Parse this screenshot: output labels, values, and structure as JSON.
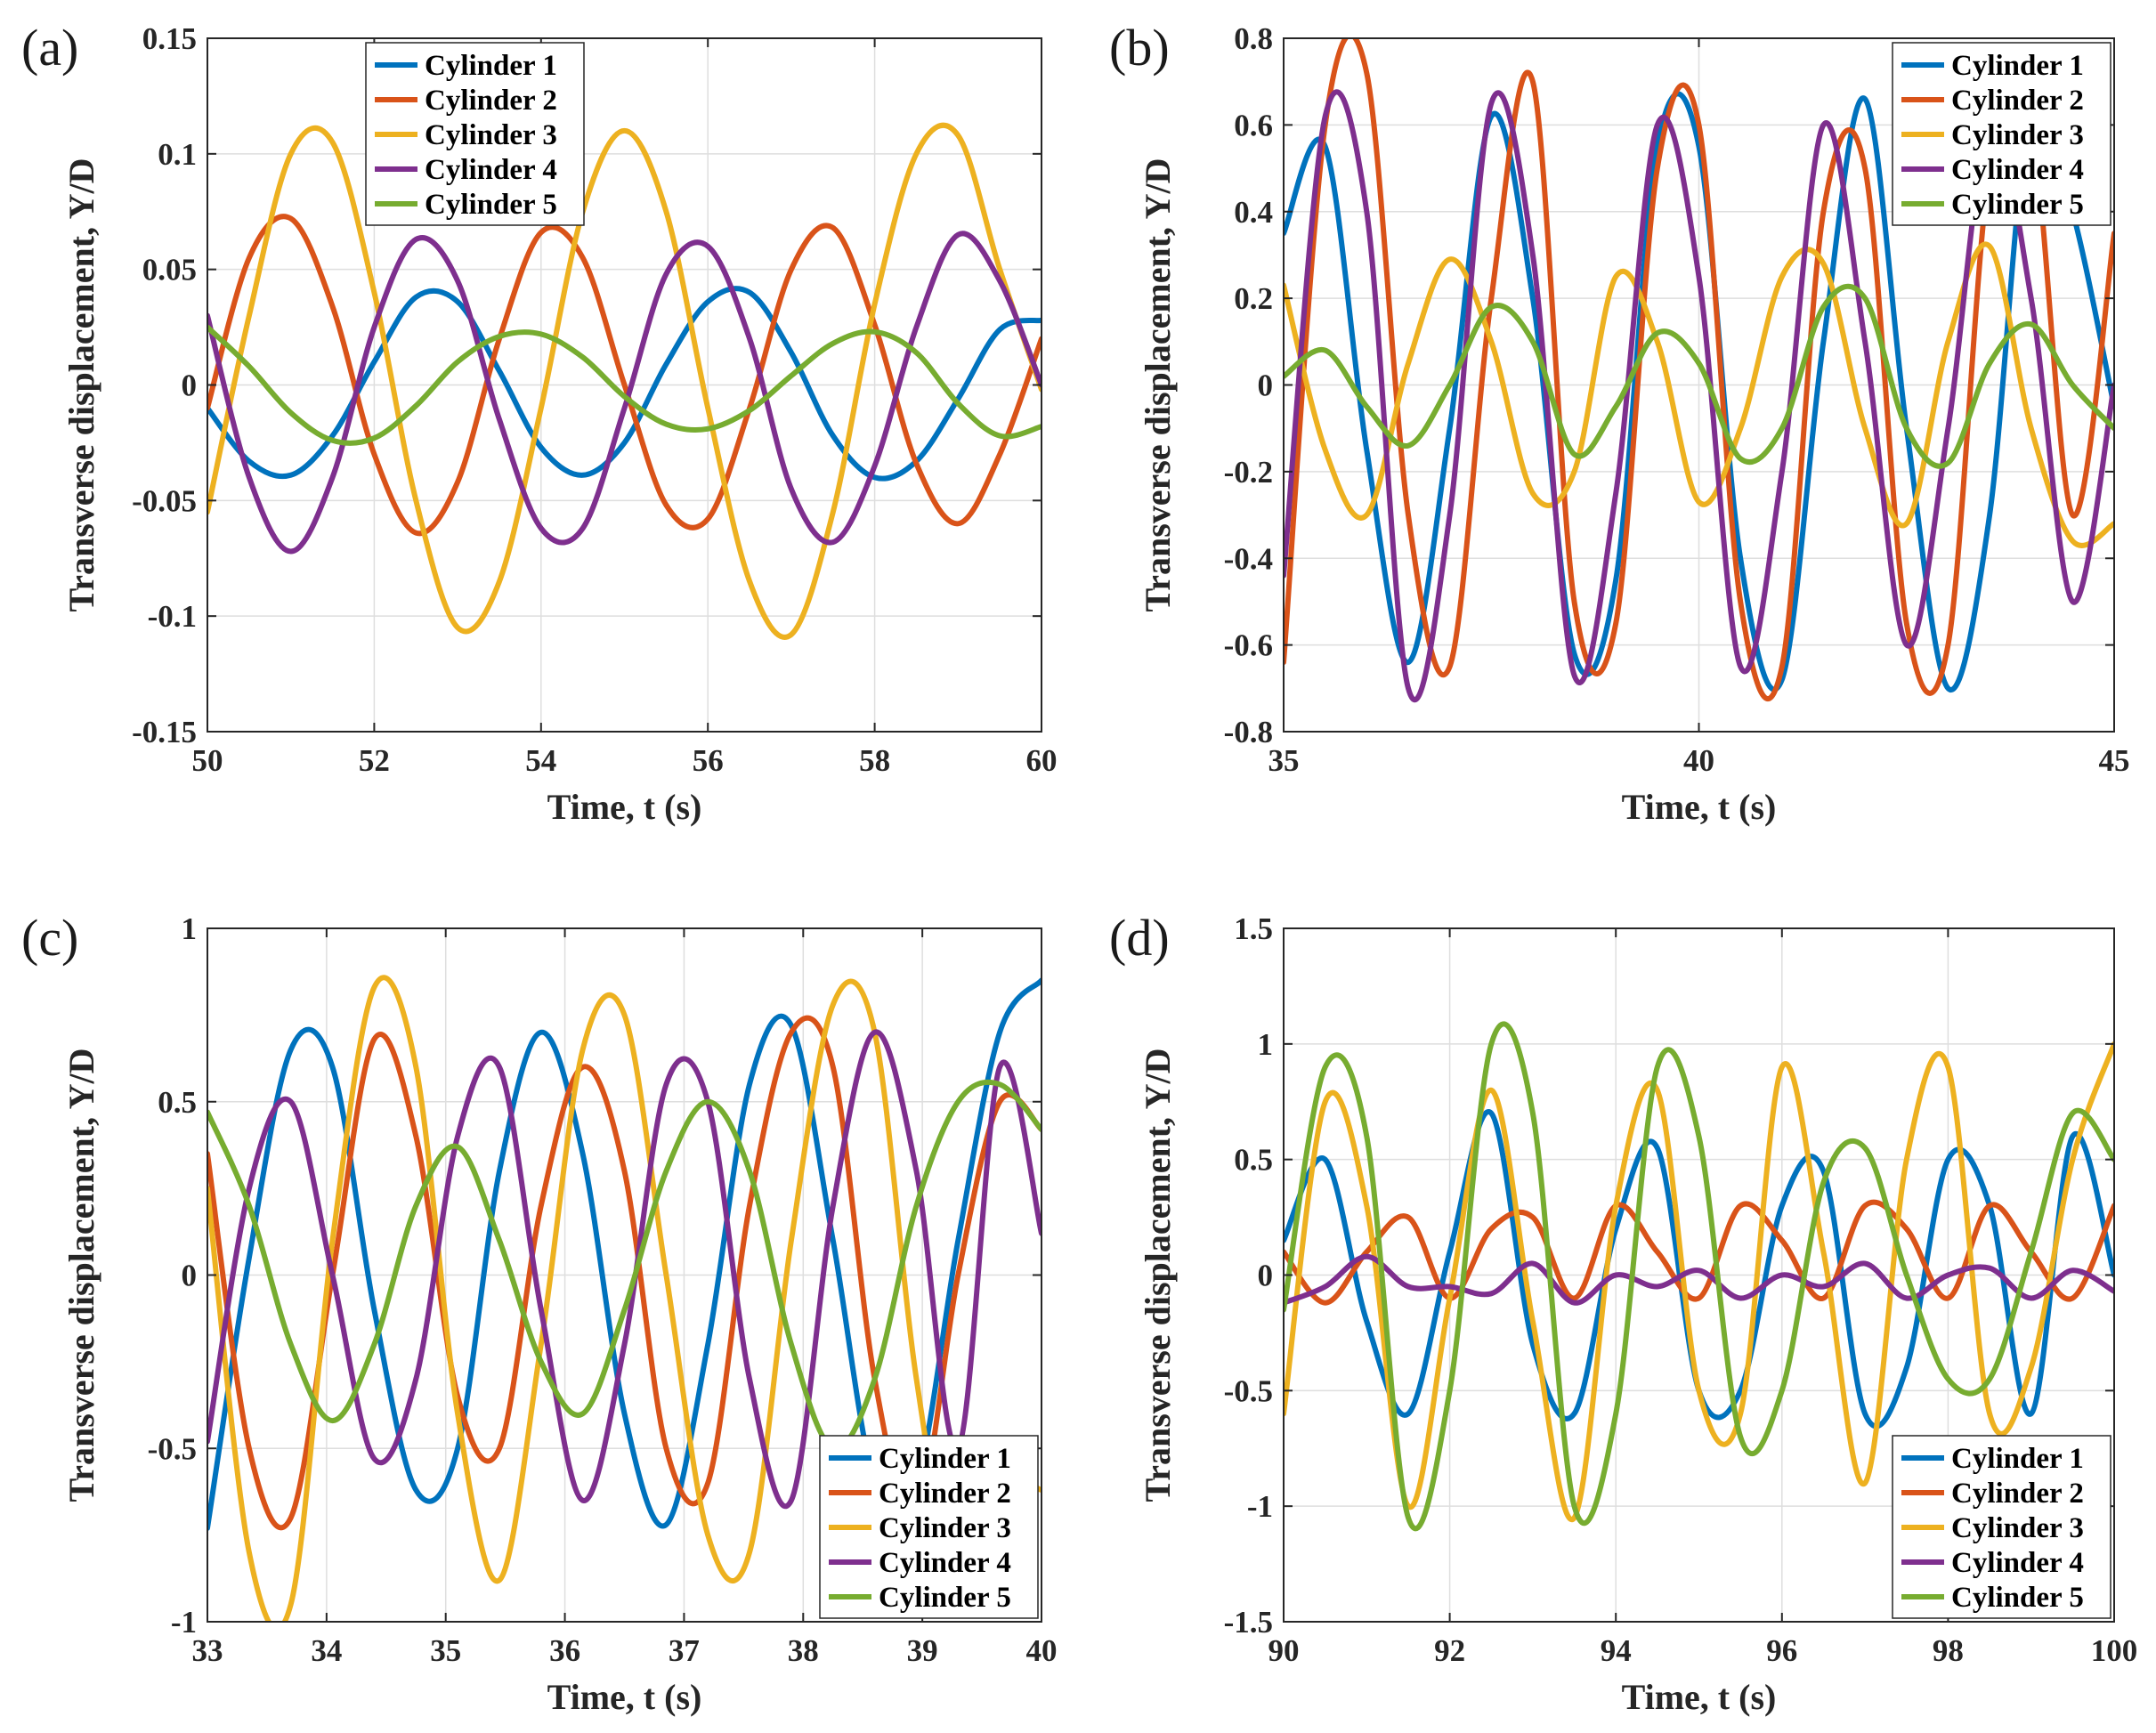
{
  "colors": {
    "cylinder_1": "#0072BD",
    "cylinder_2": "#D95319",
    "cylinder_3": "#EDB120",
    "cylinder_4": "#7E2F8E",
    "cylinder_5": "#77AC30"
  },
  "chart_data": [
    {
      "panel": "(a)",
      "type": "line",
      "xlabel": "Time, t (s)",
      "ylabel": "Transverse displacement, Y/D",
      "xlim": [
        50,
        60
      ],
      "ylim": [
        -0.15,
        0.15
      ],
      "xticks": [
        50,
        52,
        54,
        56,
        58,
        60
      ],
      "yticks": [
        0.15,
        0.1,
        0.05,
        0,
        -0.05,
        -0.1,
        -0.15
      ],
      "grid": true,
      "legend_position": "top-center",
      "series": [
        {
          "name": "Cylinder 1",
          "x": [
            50.0,
            50.5,
            51.0,
            51.5,
            52.0,
            52.5,
            53.0,
            53.5,
            54.0,
            54.5,
            55.0,
            55.5,
            56.0,
            56.5,
            57.0,
            57.5,
            58.0,
            58.5,
            59.0,
            59.5,
            60.0
          ],
          "y": [
            -0.01,
            -0.033,
            -0.039,
            -0.022,
            0.01,
            0.038,
            0.036,
            0.006,
            -0.027,
            -0.039,
            -0.025,
            0.009,
            0.036,
            0.04,
            0.014,
            -0.022,
            -0.04,
            -0.033,
            -0.006,
            0.024,
            0.028
          ]
        },
        {
          "name": "Cylinder 2",
          "x": [
            50.0,
            50.5,
            51.0,
            51.5,
            52.0,
            52.5,
            53.0,
            53.5,
            54.0,
            54.5,
            55.0,
            55.5,
            56.0,
            56.5,
            57.0,
            57.5,
            58.0,
            58.5,
            59.0,
            59.5,
            60.0
          ],
          "y": [
            -0.01,
            0.055,
            0.072,
            0.034,
            -0.03,
            -0.064,
            -0.042,
            0.02,
            0.066,
            0.055,
            0.0,
            -0.052,
            -0.058,
            -0.01,
            0.05,
            0.068,
            0.026,
            -0.034,
            -0.06,
            -0.03,
            0.02
          ]
        },
        {
          "name": "Cylinder 3",
          "x": [
            50.0,
            50.5,
            51.0,
            51.5,
            52.0,
            52.5,
            53.0,
            53.5,
            54.0,
            54.5,
            55.0,
            55.5,
            56.0,
            56.5,
            57.0,
            57.5,
            58.0,
            58.5,
            59.0,
            59.5,
            60.0
          ],
          "y": [
            -0.055,
            0.03,
            0.1,
            0.105,
            0.04,
            -0.05,
            -0.105,
            -0.085,
            -0.01,
            0.075,
            0.11,
            0.075,
            -0.01,
            -0.085,
            -0.108,
            -0.055,
            0.035,
            0.1,
            0.108,
            0.05,
            -0.002
          ]
        },
        {
          "name": "Cylinder 4",
          "x": [
            50.0,
            50.5,
            51.0,
            51.5,
            52.0,
            52.5,
            53.0,
            53.5,
            54.0,
            54.5,
            55.0,
            55.5,
            56.0,
            56.5,
            57.0,
            57.5,
            58.0,
            58.5,
            59.0,
            59.5,
            60.0
          ],
          "y": [
            0.03,
            -0.04,
            -0.072,
            -0.04,
            0.025,
            0.063,
            0.045,
            -0.015,
            -0.062,
            -0.062,
            -0.01,
            0.048,
            0.06,
            0.02,
            -0.045,
            -0.068,
            -0.035,
            0.025,
            0.065,
            0.045,
            0.0
          ]
        },
        {
          "name": "Cylinder 5",
          "x": [
            50.0,
            50.5,
            51.0,
            51.5,
            52.0,
            52.5,
            53.0,
            53.5,
            54.0,
            54.5,
            55.0,
            55.5,
            56.0,
            56.5,
            57.0,
            57.5,
            58.0,
            58.5,
            59.0,
            59.5,
            60.0
          ],
          "y": [
            0.025,
            0.008,
            -0.012,
            -0.024,
            -0.023,
            -0.009,
            0.01,
            0.021,
            0.022,
            0.012,
            -0.005,
            -0.017,
            -0.019,
            -0.011,
            0.004,
            0.018,
            0.023,
            0.014,
            -0.008,
            -0.022,
            -0.018
          ]
        }
      ]
    },
    {
      "panel": "(b)",
      "type": "line",
      "xlabel": "Time, t (s)",
      "ylabel": "Transverse displacement, Y/D",
      "xlim": [
        35,
        45
      ],
      "ylim": [
        -0.8,
        0.8
      ],
      "xticks": [
        35,
        40,
        45
      ],
      "yticks": [
        0.8,
        0.6,
        0.4,
        0.2,
        0,
        -0.2,
        -0.4,
        -0.6,
        -0.8
      ],
      "grid": true,
      "legend_position": "top-right",
      "series": [
        {
          "name": "Cylinder 1",
          "x": [
            35.0,
            35.5,
            36.0,
            36.5,
            37.0,
            37.5,
            38.0,
            38.5,
            39.0,
            39.5,
            40.0,
            40.5,
            41.0,
            41.5,
            42.0,
            42.5,
            43.0,
            43.5,
            44.0,
            44.5,
            45.0
          ],
          "y": [
            0.35,
            0.55,
            -0.15,
            -0.64,
            -0.1,
            0.62,
            0.2,
            -0.62,
            -0.45,
            0.55,
            0.55,
            -0.4,
            -0.68,
            0.1,
            0.66,
            -0.1,
            -0.7,
            -0.3,
            0.65,
            0.4,
            -0.05
          ]
        },
        {
          "name": "Cylinder 2",
          "x": [
            35.0,
            35.5,
            36.0,
            36.5,
            37.0,
            37.5,
            38.0,
            38.5,
            39.0,
            39.5,
            40.0,
            40.5,
            41.0,
            41.5,
            42.0,
            42.5,
            43.0,
            43.5,
            44.0,
            44.5,
            45.0
          ],
          "y": [
            -0.64,
            0.6,
            0.72,
            -0.3,
            -0.65,
            0.2,
            0.7,
            -0.5,
            -0.55,
            0.5,
            0.6,
            -0.5,
            -0.65,
            0.4,
            0.5,
            -0.55,
            -0.6,
            0.5,
            0.6,
            -0.3,
            0.35
          ]
        },
        {
          "name": "Cylinder 3",
          "x": [
            35.0,
            35.5,
            36.0,
            36.5,
            37.0,
            37.5,
            38.0,
            38.5,
            39.0,
            39.5,
            40.0,
            40.5,
            41.0,
            41.5,
            42.0,
            42.5,
            43.0,
            43.5,
            44.0,
            44.5,
            45.0
          ],
          "y": [
            0.23,
            -0.15,
            -0.3,
            0.05,
            0.29,
            0.1,
            -0.25,
            -0.2,
            0.25,
            0.1,
            -0.27,
            -0.1,
            0.25,
            0.28,
            -0.1,
            -0.32,
            0.1,
            0.32,
            -0.1,
            -0.36,
            -0.32
          ]
        },
        {
          "name": "Cylinder 4",
          "x": [
            35.0,
            35.5,
            36.0,
            36.5,
            37.0,
            37.5,
            38.0,
            38.5,
            39.0,
            39.5,
            40.0,
            40.5,
            41.0,
            41.5,
            42.0,
            42.5,
            43.0,
            43.5,
            44.0,
            44.5,
            45.0
          ],
          "y": [
            -0.44,
            0.62,
            0.4,
            -0.7,
            -0.3,
            0.65,
            0.3,
            -0.67,
            -0.25,
            0.6,
            0.25,
            -0.65,
            -0.2,
            0.6,
            0.1,
            -0.6,
            -0.1,
            0.6,
            0.2,
            -0.5,
            0.0
          ]
        },
        {
          "name": "Cylinder 5",
          "x": [
            35.0,
            35.5,
            36.0,
            36.5,
            37.0,
            37.5,
            38.0,
            38.5,
            39.0,
            39.5,
            40.0,
            40.5,
            41.0,
            41.5,
            42.0,
            42.5,
            43.0,
            43.5,
            44.0,
            44.5,
            45.0
          ],
          "y": [
            0.02,
            0.08,
            -0.05,
            -0.14,
            0.0,
            0.18,
            0.1,
            -0.16,
            -0.05,
            0.12,
            0.05,
            -0.17,
            -0.1,
            0.18,
            0.2,
            -0.1,
            -0.18,
            0.05,
            0.14,
            0.0,
            -0.1
          ]
        }
      ]
    },
    {
      "panel": "(c)",
      "type": "line",
      "xlabel": "Time, t (s)",
      "ylabel": "Transverse displacement, Y/D",
      "xlim": [
        33,
        40
      ],
      "ylim": [
        -1,
        1
      ],
      "xticks": [
        33,
        34,
        35,
        36,
        37,
        38,
        39,
        40
      ],
      "yticks": [
        1,
        0.5,
        0,
        -0.5,
        -1
      ],
      "grid": true,
      "legend_position": "bottom-right",
      "series": [
        {
          "name": "Cylinder 1",
          "x": [
            33.0,
            33.35,
            33.7,
            34.05,
            34.4,
            34.75,
            35.1,
            35.45,
            35.8,
            36.15,
            36.5,
            36.85,
            37.2,
            37.55,
            37.9,
            38.25,
            38.6,
            38.95,
            39.3,
            39.65,
            40.0
          ],
          "y": [
            -0.73,
            0.05,
            0.65,
            0.6,
            -0.1,
            -0.62,
            -0.5,
            0.3,
            0.7,
            0.35,
            -0.4,
            -0.72,
            -0.2,
            0.55,
            0.72,
            0.1,
            -0.6,
            -0.6,
            0.1,
            0.7,
            0.85
          ]
        },
        {
          "name": "Cylinder 2",
          "x": [
            33.0,
            33.35,
            33.7,
            34.05,
            34.4,
            34.75,
            35.1,
            35.45,
            35.8,
            36.15,
            36.5,
            36.85,
            37.2,
            37.55,
            37.9,
            38.25,
            38.6,
            38.95,
            39.3,
            39.65,
            40.0
          ],
          "y": [
            0.35,
            -0.5,
            -0.7,
            0.0,
            0.68,
            0.4,
            -0.35,
            -0.5,
            0.2,
            0.6,
            0.3,
            -0.5,
            -0.6,
            0.2,
            0.7,
            0.6,
            -0.3,
            -0.7,
            0.0,
            0.5,
            0.42
          ]
        },
        {
          "name": "Cylinder 3",
          "x": [
            33.0,
            33.35,
            33.7,
            34.05,
            34.4,
            34.75,
            35.1,
            35.45,
            35.8,
            36.15,
            36.5,
            36.85,
            37.2,
            37.55,
            37.9,
            38.25,
            38.6,
            38.95,
            39.3,
            39.65,
            40.0
          ],
          "y": [
            0.25,
            -0.8,
            -0.95,
            0.1,
            0.83,
            0.6,
            -0.4,
            -0.88,
            -0.2,
            0.65,
            0.75,
            0.0,
            -0.75,
            -0.8,
            0.1,
            0.78,
            0.7,
            -0.3,
            -0.9,
            -0.6,
            -0.62
          ]
        },
        {
          "name": "Cylinder 4",
          "x": [
            33.0,
            33.35,
            33.7,
            34.05,
            34.4,
            34.75,
            35.1,
            35.45,
            35.8,
            36.15,
            36.5,
            36.85,
            37.2,
            37.55,
            37.9,
            38.25,
            38.6,
            38.95,
            39.3,
            39.65,
            40.0
          ],
          "y": [
            -0.48,
            0.25,
            0.5,
            0.0,
            -0.53,
            -0.3,
            0.4,
            0.6,
            -0.1,
            -0.65,
            -0.2,
            0.55,
            0.5,
            -0.3,
            -0.65,
            0.2,
            0.7,
            0.3,
            -0.5,
            0.6,
            0.12
          ]
        },
        {
          "name": "Cylinder 5",
          "x": [
            33.0,
            33.35,
            33.7,
            34.05,
            34.4,
            34.75,
            35.1,
            35.45,
            35.8,
            36.15,
            36.5,
            36.85,
            37.2,
            37.55,
            37.9,
            38.25,
            38.6,
            38.95,
            39.3,
            39.65,
            40.0
          ],
          "y": [
            0.47,
            0.2,
            -0.2,
            -0.42,
            -0.2,
            0.2,
            0.37,
            0.1,
            -0.25,
            -0.4,
            -0.1,
            0.3,
            0.5,
            0.3,
            -0.2,
            -0.5,
            -0.3,
            0.2,
            0.5,
            0.55,
            0.42
          ]
        }
      ]
    },
    {
      "panel": "(d)",
      "type": "line",
      "xlabel": "Time, t (s)",
      "ylabel": "Transverse displacement, Y/D",
      "xlim": [
        90,
        100
      ],
      "ylim": [
        -1.5,
        1.5
      ],
      "xticks": [
        90,
        92,
        94,
        96,
        98,
        100
      ],
      "yticks": [
        1.5,
        1,
        0.5,
        0,
        -0.5,
        -1,
        -1.5
      ],
      "grid": true,
      "legend_position": "bottom-right",
      "series": [
        {
          "name": "Cylinder 1",
          "x": [
            90.0,
            90.5,
            91.0,
            91.5,
            92.0,
            92.5,
            93.0,
            93.5,
            94.0,
            94.5,
            95.0,
            95.5,
            96.0,
            96.5,
            97.0,
            97.5,
            98.0,
            98.5,
            99.0,
            99.5,
            100.0
          ],
          "y": [
            0.15,
            0.5,
            -0.2,
            -0.6,
            0.1,
            0.7,
            -0.3,
            -0.6,
            0.2,
            0.55,
            -0.5,
            -0.5,
            0.3,
            0.45,
            -0.6,
            -0.4,
            0.5,
            0.3,
            -0.6,
            0.6,
            0.0
          ]
        },
        {
          "name": "Cylinder 2",
          "x": [
            90.0,
            90.5,
            91.0,
            91.5,
            92.0,
            92.5,
            93.0,
            93.5,
            94.0,
            94.5,
            95.0,
            95.5,
            96.0,
            96.5,
            97.0,
            97.5,
            98.0,
            98.5,
            99.0,
            99.5,
            100.0
          ],
          "y": [
            0.1,
            -0.12,
            0.1,
            0.25,
            -0.1,
            0.2,
            0.25,
            -0.1,
            0.3,
            0.1,
            -0.1,
            0.3,
            0.15,
            -0.1,
            0.3,
            0.2,
            -0.1,
            0.3,
            0.1,
            -0.1,
            0.3
          ]
        },
        {
          "name": "Cylinder 3",
          "x": [
            90.0,
            90.5,
            91.0,
            91.5,
            92.0,
            92.5,
            93.0,
            93.5,
            94.0,
            94.5,
            95.0,
            95.5,
            96.0,
            96.5,
            97.0,
            97.5,
            98.0,
            98.5,
            99.0,
            99.5,
            100.0
          ],
          "y": [
            -0.6,
            0.75,
            0.3,
            -1.0,
            -0.1,
            0.8,
            -0.2,
            -1.05,
            0.3,
            0.8,
            -0.5,
            -0.6,
            0.9,
            0.1,
            -0.9,
            0.5,
            0.9,
            -0.6,
            -0.4,
            0.5,
            1.0
          ]
        },
        {
          "name": "Cylinder 4",
          "x": [
            90.0,
            90.5,
            91.0,
            91.5,
            92.0,
            92.5,
            93.0,
            93.5,
            94.0,
            94.5,
            95.0,
            95.5,
            96.0,
            96.5,
            97.0,
            97.5,
            98.0,
            98.5,
            99.0,
            99.5,
            100.0
          ],
          "y": [
            -0.12,
            -0.05,
            0.08,
            -0.05,
            -0.05,
            -0.08,
            0.05,
            -0.12,
            0.0,
            -0.05,
            0.02,
            -0.1,
            0.0,
            -0.05,
            0.05,
            -0.1,
            0.0,
            0.03,
            -0.1,
            0.02,
            -0.07
          ]
        },
        {
          "name": "Cylinder 5",
          "x": [
            90.0,
            90.5,
            91.0,
            91.5,
            92.0,
            92.5,
            93.0,
            93.5,
            94.0,
            94.5,
            95.0,
            95.5,
            96.0,
            96.5,
            97.0,
            97.5,
            98.0,
            98.5,
            99.0,
            99.5,
            100.0
          ],
          "y": [
            -0.15,
            0.9,
            0.6,
            -1.05,
            -0.5,
            1.0,
            0.7,
            -1.0,
            -0.6,
            0.9,
            0.6,
            -0.7,
            -0.5,
            0.4,
            0.55,
            0.0,
            -0.45,
            -0.45,
            0.1,
            0.7,
            0.5
          ]
        }
      ]
    }
  ]
}
